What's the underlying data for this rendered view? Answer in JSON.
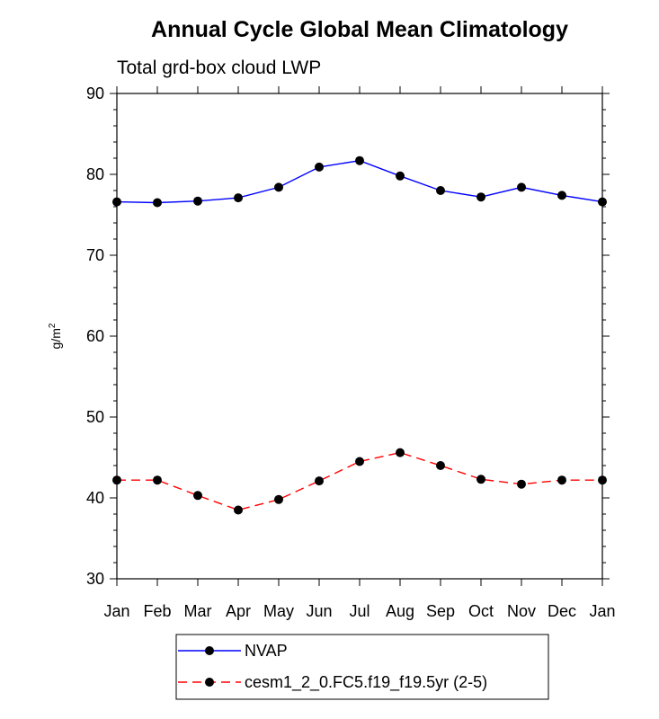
{
  "chart_data": {
    "type": "line",
    "title": "Annual Cycle Global Mean Climatology",
    "subtitle": "Total grd-box cloud LWP",
    "ylabel": "g/m",
    "ylabel_superscript": "2",
    "xlabel": "",
    "ylim": [
      30,
      90
    ],
    "yticks": [
      30,
      40,
      50,
      60,
      70,
      80,
      90
    ],
    "ytick_labels": [
      "30",
      "40",
      "50",
      "60",
      "70",
      "80",
      "90"
    ],
    "categories": [
      "Jan",
      "Feb",
      "Mar",
      "Apr",
      "May",
      "Jun",
      "Jul",
      "Aug",
      "Sep",
      "Oct",
      "Nov",
      "Dec",
      "Jan"
    ],
    "grid": false,
    "legend_position": "bottom-center",
    "series": [
      {
        "name": "NVAP",
        "color": "#0000ff",
        "dash": "solid",
        "values": [
          76.6,
          76.5,
          76.7,
          77.1,
          78.4,
          80.9,
          81.7,
          79.8,
          78.0,
          77.2,
          78.4,
          77.4,
          76.6
        ]
      },
      {
        "name": "cesm1_2_0.FC5.f19_f19.5yr (2-5)",
        "color": "#ff0000",
        "dash": "dashed",
        "values": [
          42.2,
          42.2,
          40.3,
          38.5,
          39.8,
          42.1,
          44.5,
          45.6,
          44.0,
          42.3,
          41.7,
          42.2,
          42.2
        ]
      }
    ]
  }
}
